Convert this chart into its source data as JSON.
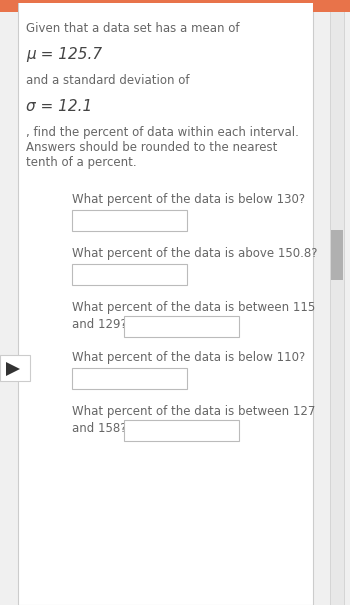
{
  "bg_color": "#f0f0f0",
  "panel_color": "#ffffff",
  "border_color": "#cccccc",
  "orange_color": "#e8734a",
  "header_text": "Given that a data set has a mean of",
  "mu_label": "μ = 125.7",
  "sigma_intro": "and a standard deviation of",
  "sigma_label": "σ = 12.1",
  "body_lines": [
    ", find the percent of data within each interval.",
    "Answers should be rounded to the nearest",
    "tenth of a percent."
  ],
  "q1_line1": "What percent of the data is below 130?",
  "q2_line1": "What percent of the data is above 150.8?",
  "q3_line1": "What percent of the data is between 115",
  "q3_line2": "and 129?",
  "q4_line1": "What percent of the data is below 110?",
  "q5_line1": "What percent of the data is between 127",
  "q5_line2": "and 158?",
  "text_color": "#666666",
  "bold_color": "#444444",
  "box_fill": "#ffffff",
  "box_edge": "#bbbbbb"
}
